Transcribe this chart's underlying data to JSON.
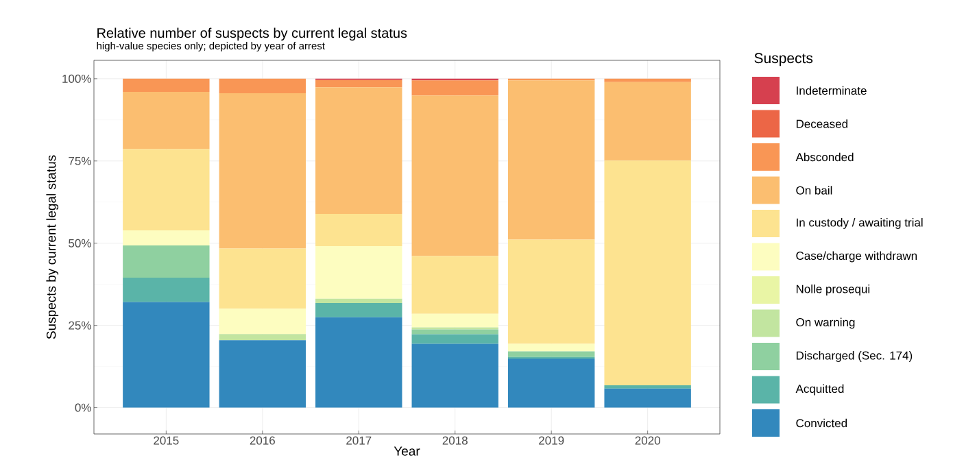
{
  "chart_data": {
    "type": "bar",
    "stacked": true,
    "title": "Relative number of suspects by current legal status",
    "subtitle": "high-value species only; depicted by year of arrest",
    "xlabel": "Year",
    "ylabel": "Suspects by current legal status",
    "legend_title": "Suspects",
    "legend": "right",
    "grid": true,
    "categories": [
      "2015",
      "2016",
      "2017",
      "2018",
      "2019",
      "2020"
    ],
    "ylim": [
      -8,
      105.6
    ],
    "yticks": [
      {
        "value": 0,
        "label": "0%"
      },
      {
        "value": 25,
        "label": "25%"
      },
      {
        "value": 50,
        "label": "50%"
      },
      {
        "value": 75,
        "label": "75%"
      },
      {
        "value": 100,
        "label": "100%"
      }
    ],
    "series": [
      {
        "name": "Convicted",
        "color": "#3288bd",
        "values": [
          32.1,
          20.5,
          27.5,
          19.4,
          14.9,
          5.8
        ]
      },
      {
        "name": "Acquitted",
        "color": "#5ab4a8",
        "values": [
          7.4,
          0,
          4.3,
          2.9,
          0.5,
          1.0
        ]
      },
      {
        "name": "Discharged (Sec. 174)",
        "color": "#8fd0a0",
        "values": [
          9.8,
          0,
          0,
          1.5,
          1.7,
          0
        ]
      },
      {
        "name": "On warning",
        "color": "#c2e5a0",
        "values": [
          0,
          1.9,
          1.3,
          0.6,
          0,
          0
        ]
      },
      {
        "name": "Nolle prosequi",
        "color": "#e9f5a5",
        "values": [
          0,
          0,
          0,
          0,
          0,
          0
        ]
      },
      {
        "name": "Case/charge withdrawn",
        "color": "#fdfdc0",
        "values": [
          4.6,
          7.7,
          16.0,
          4.1,
          2.3,
          0
        ]
      },
      {
        "name": "In custody / awaiting trial",
        "color": "#fde390",
        "values": [
          24.7,
          18.3,
          9.8,
          17.6,
          31.7,
          68.3
        ]
      },
      {
        "name": "On bail",
        "color": "#fbbe70",
        "values": [
          17.4,
          47.2,
          38.5,
          48.8,
          48.4,
          23.9
        ]
      },
      {
        "name": "Absconded",
        "color": "#f99655",
        "values": [
          4.0,
          4.4,
          2.2,
          4.6,
          0.5,
          1.0
        ]
      },
      {
        "name": "Deceased",
        "color": "#ec6646",
        "values": [
          0,
          0,
          0,
          0,
          0,
          0
        ]
      },
      {
        "name": "Indeterminate",
        "color": "#d6404f",
        "values": [
          0,
          0,
          0.4,
          0.5,
          0,
          0
        ]
      }
    ]
  }
}
